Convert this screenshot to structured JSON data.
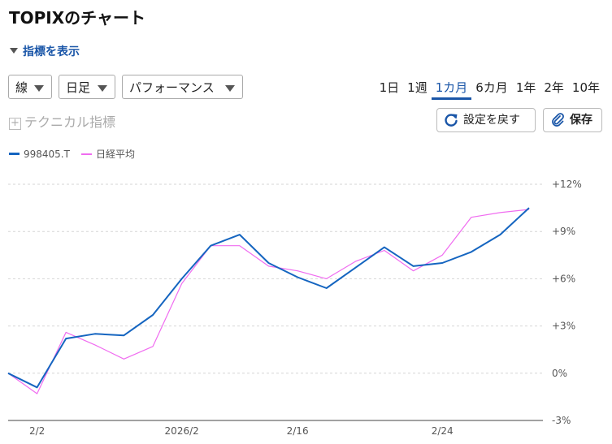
{
  "title": "TOPIXのチャート",
  "indicator_toggle": "指標を表示",
  "controls": {
    "chart_type": "線",
    "period_type": "日足",
    "mode": "パフォーマンス",
    "ranges": [
      "1日",
      "1週",
      "1カ月",
      "6カ月",
      "1年",
      "2年",
      "10年"
    ],
    "active_range": "1カ月",
    "technical": "テクニカル指標",
    "reset_label": "設定を戻す",
    "save_label": "保存"
  },
  "colors": {
    "series_topix": "#1565c0",
    "series_nikkei": "#f06cf0",
    "accent": "#1a56a8"
  },
  "chart_data": {
    "type": "line",
    "x": [
      "",
      "",
      "",
      "",
      "",
      "",
      "",
      "",
      "",
      "",
      "",
      "",
      "",
      "",
      "",
      "",
      "",
      "",
      ""
    ],
    "x_tick_labels": [
      "2/2",
      "2026/2",
      "2/16",
      "2/24"
    ],
    "y_tick_labels": [
      "+12%",
      "+9%",
      "+6%",
      "+3%",
      "0%",
      "-3%"
    ],
    "ylim": [
      -3,
      12
    ],
    "grid": true,
    "legend_position": "top-left",
    "series": [
      {
        "name": "998405.T",
        "values": [
          0,
          -0.9,
          2.2,
          2.5,
          2.4,
          3.7,
          6.0,
          8.1,
          8.8,
          7.0,
          6.1,
          5.4,
          6.7,
          8.0,
          6.8,
          7.0,
          7.7,
          8.8,
          10.5
        ]
      },
      {
        "name": "日経平均",
        "values": [
          0,
          -1.3,
          2.6,
          1.8,
          0.9,
          1.7,
          5.7,
          8.1,
          8.1,
          6.8,
          6.5,
          6.0,
          7.1,
          7.8,
          6.5,
          7.5,
          9.9,
          10.2,
          10.4
        ]
      }
    ]
  }
}
